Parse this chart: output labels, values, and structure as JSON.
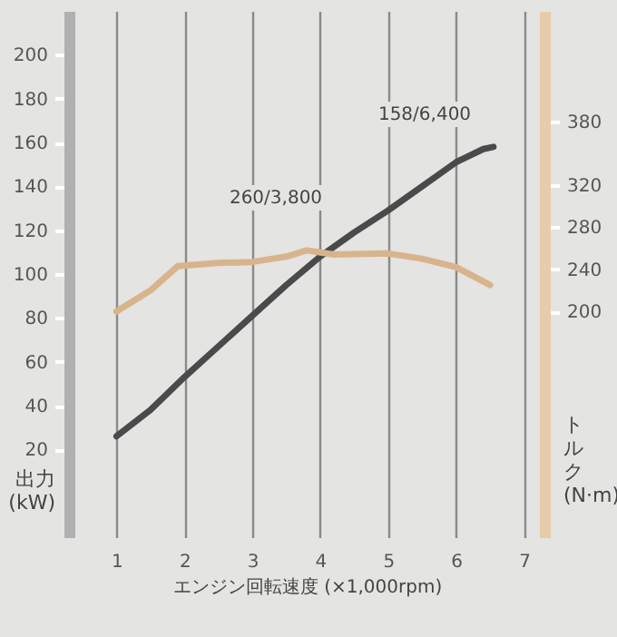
{
  "chart_data": {
    "type": "line",
    "xlabel": "エンジン回転速度 (×1,000rpm)",
    "ylabel": "出力 (kW)",
    "y2label": "トルク (N·m)",
    "xlim": [
      0.3,
      7.3
    ],
    "xticks": [
      1,
      2,
      3,
      4,
      5,
      6,
      7
    ],
    "ylim": [
      -20,
      220
    ],
    "yticks": [
      20,
      40,
      60,
      80,
      100,
      120,
      140,
      160,
      180,
      200
    ],
    "y2lim": [
      -14,
      485
    ],
    "y2ticks": [
      200,
      240,
      280,
      320,
      380
    ],
    "grid": "x",
    "marker": "none",
    "line_style": "solid",
    "annotations": [
      "260/3,800",
      "158/6,400"
    ],
    "series": [
      {
        "color": "#4a4a4a",
        "x": [
          1.0,
          1.5,
          2.0,
          2.5,
          3.0,
          3.5,
          4.0,
          4.5,
          5.0,
          5.5,
          6.0,
          6.4,
          6.55
        ],
        "values": [
          26,
          38,
          53,
          67,
          81,
          95,
          108,
          119,
          129,
          140,
          151,
          157,
          158
        ]
      },
      {
        "color": "#d8b48c",
        "axis": "y2",
        "x": [
          1.0,
          1.5,
          1.9,
          2.5,
          3.0,
          3.5,
          3.8,
          4.2,
          5.0,
          5.5,
          6.0,
          6.5
        ],
        "values": [
          200,
          220,
          243,
          246,
          247,
          252,
          258,
          254,
          255,
          250,
          242,
          225
        ]
      }
    ]
  }
}
